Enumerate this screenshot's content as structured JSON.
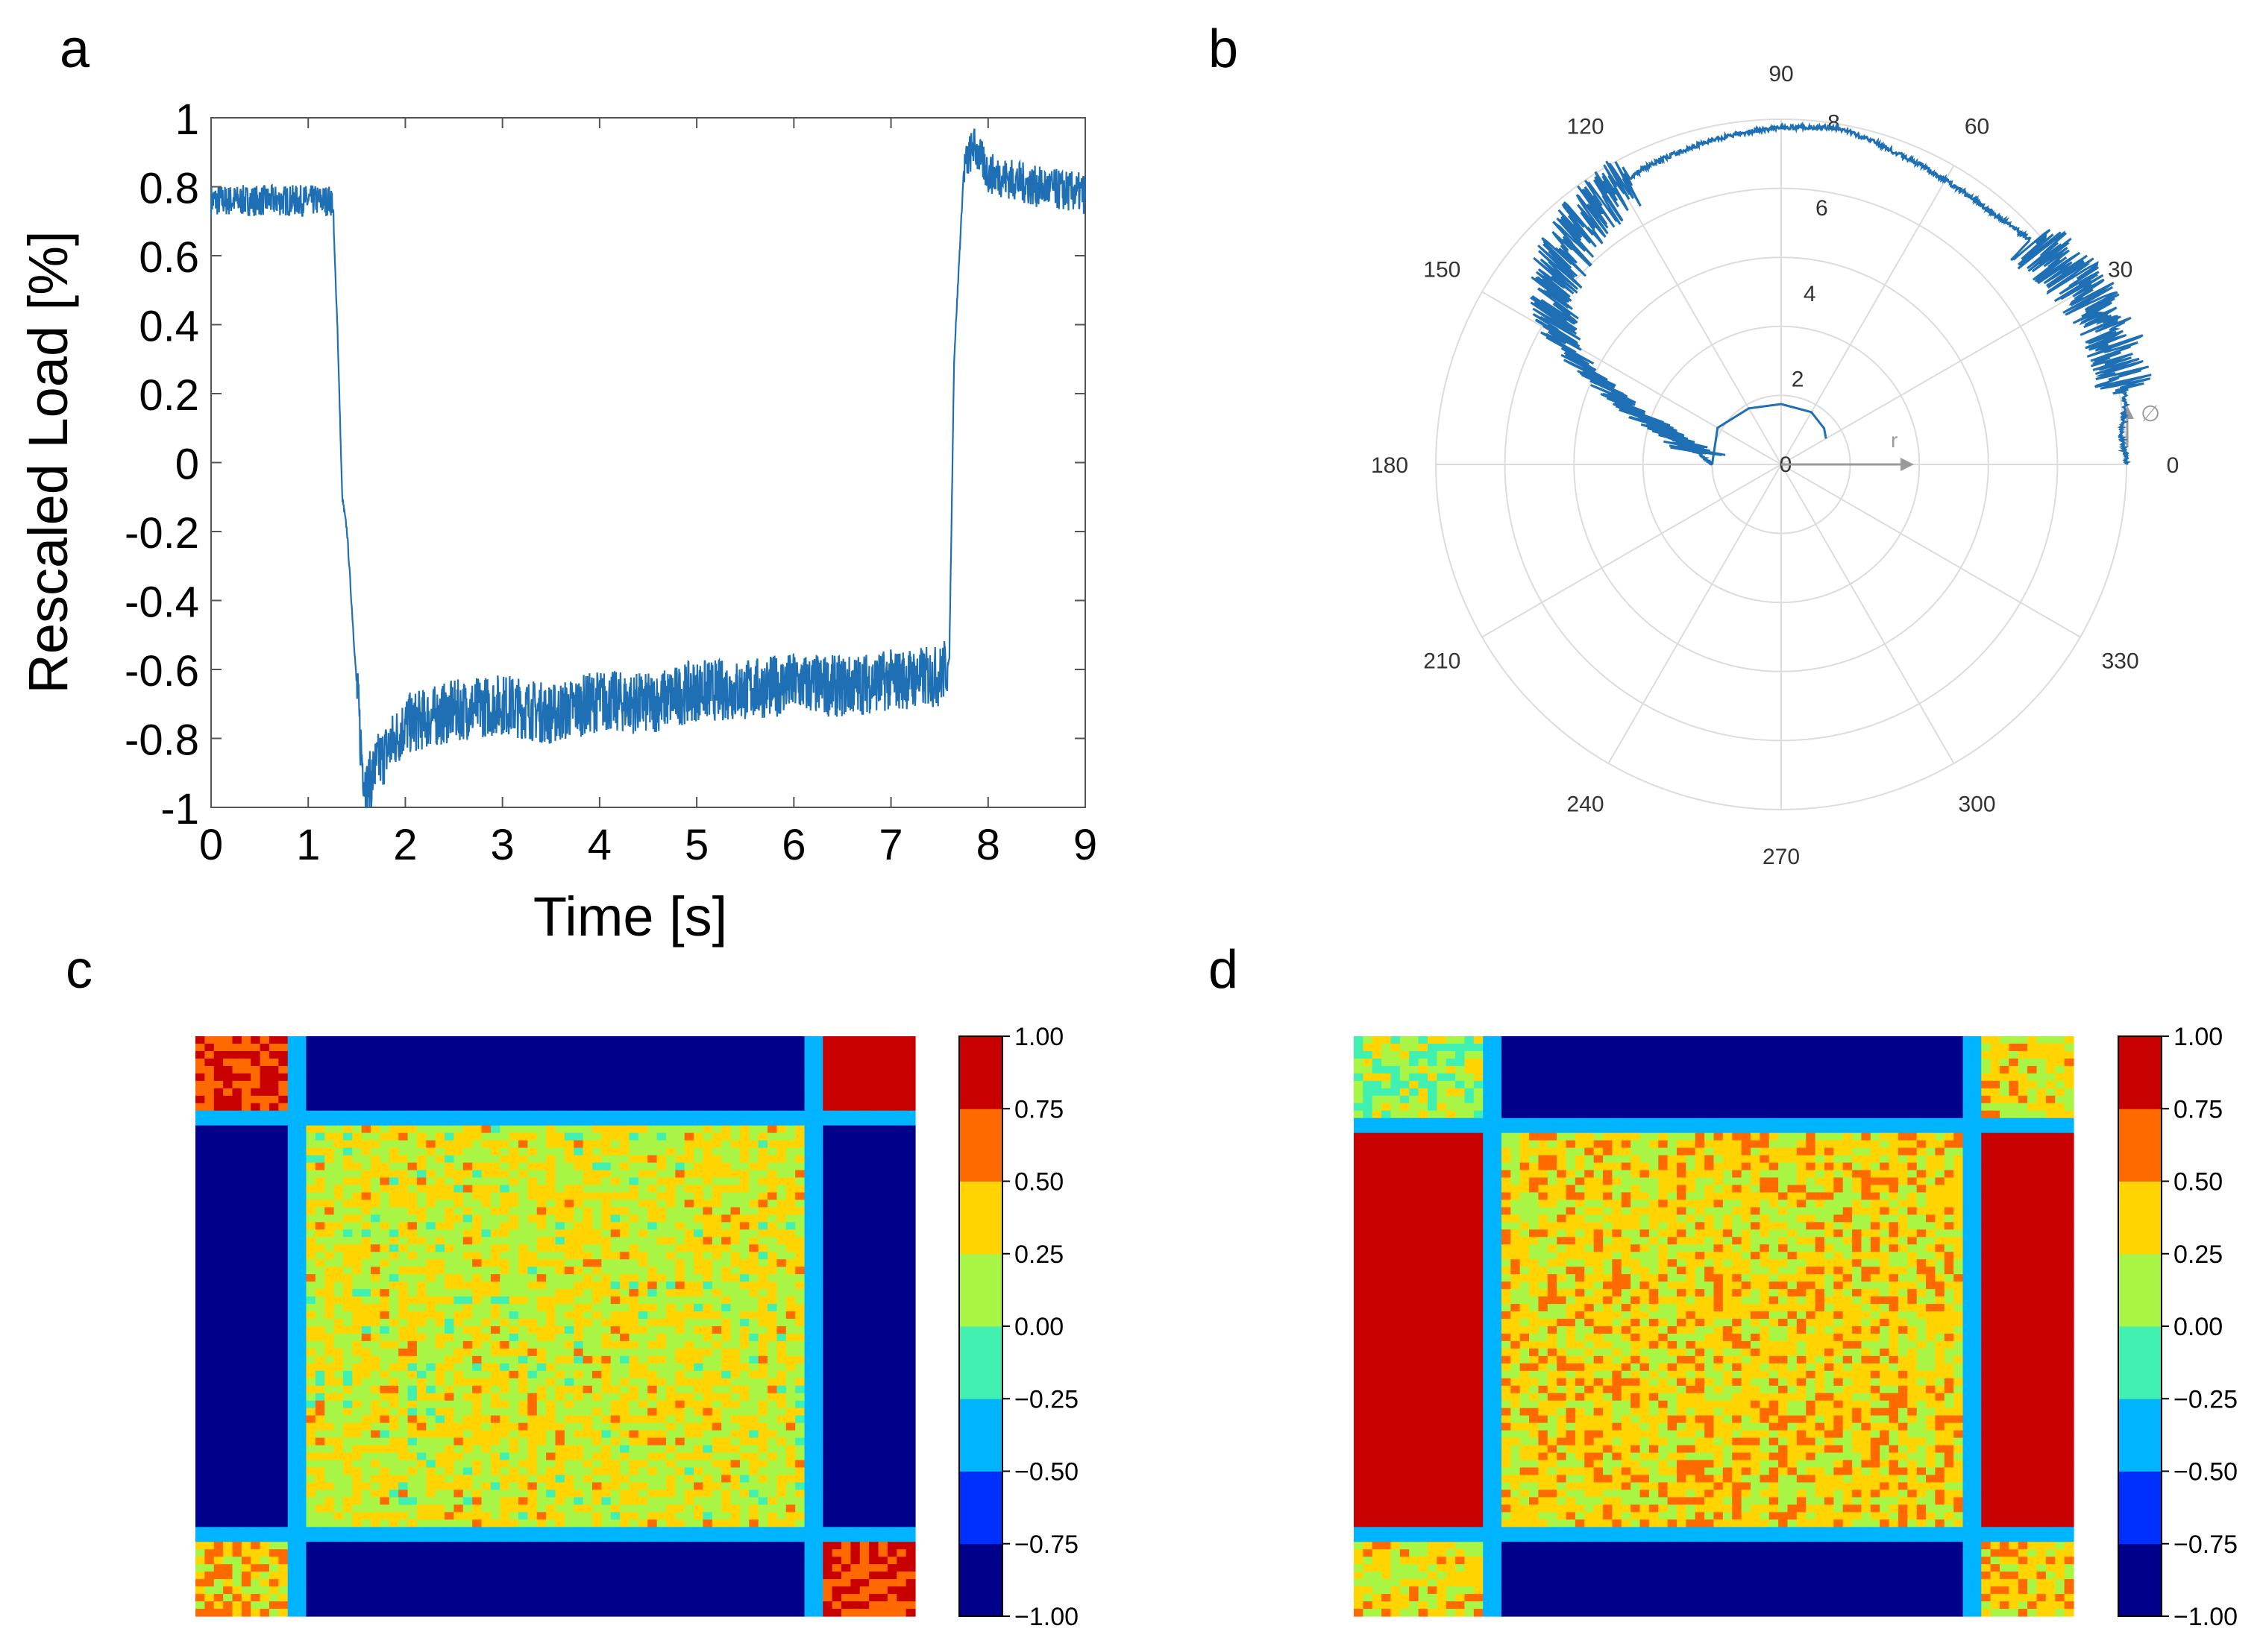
{
  "panel_labels": {
    "a": "a",
    "b": "b",
    "c": "c",
    "d": "d"
  },
  "chart_data": [
    {
      "panel": "a",
      "type": "line",
      "xlabel": "Time [s]",
      "ylabel": "Rescaled Load [%]",
      "xlim": [
        0,
        9
      ],
      "ylim": [
        -1,
        1
      ],
      "xticks": [
        "0",
        "1",
        "2",
        "3",
        "4",
        "5",
        "6",
        "7",
        "8",
        "9"
      ],
      "yticks": [
        "1",
        "0.8",
        "0.6",
        "0.4",
        "0.2",
        "0",
        "-0.2",
        "-0.4",
        "-0.6",
        "-0.8",
        "-1"
      ],
      "grid": false,
      "color": "#1f6fb5",
      "series": [
        {
          "x": [
            0,
            0.5,
            1.0,
            1.25,
            1.3,
            1.35,
            1.4,
            1.5,
            1.55,
            1.6,
            1.7,
            2.0,
            2.5,
            3.0,
            3.5,
            4.0,
            4.5,
            5.0,
            5.5,
            6.0,
            6.5,
            7.0,
            7.5,
            7.6,
            7.65,
            7.75,
            7.85,
            8.0,
            8.5,
            9.0
          ],
          "y": [
            0.76,
            0.76,
            0.76,
            0.76,
            0.4,
            -0.1,
            -0.2,
            -0.65,
            -0.85,
            -0.95,
            -0.88,
            -0.76,
            -0.72,
            -0.7,
            -0.73,
            -0.69,
            -0.7,
            -0.66,
            -0.66,
            -0.64,
            -0.65,
            -0.63,
            -0.62,
            -0.58,
            0.3,
            0.85,
            0.92,
            0.84,
            0.8,
            0.78
          ]
        }
      ]
    },
    {
      "panel": "b",
      "type": "scatter",
      "subtype": "polar",
      "angle_ticks": [
        "0",
        "30",
        "60",
        "90",
        "120",
        "150",
        "180",
        "210",
        "240",
        "270",
        "300",
        "330"
      ],
      "radial_ticks": [
        "0",
        "2",
        "4",
        "6",
        "8"
      ],
      "radial_max": 8,
      "axis_labels": {
        "r": "r",
        "phi": "∅"
      },
      "color": "#1f6fb5",
      "series": [
        {
          "theta": [
            0,
            5,
            10,
            20,
            30,
            40,
            50,
            60,
            70,
            80,
            90,
            100,
            110,
            120,
            130,
            140,
            150,
            160,
            170,
            180
          ],
          "r": [
            8.0,
            7.9,
            8.1,
            8.2,
            8.1,
            7.8,
            7.6,
            7.6,
            7.7,
            7.9,
            7.8,
            7.7,
            7.6,
            7.5,
            7.2,
            6.8,
            6.0,
            3.5,
            2.0,
            1.6
          ]
        },
        {
          "theta": [
            180,
            150,
            120,
            90,
            60,
            40,
            30
          ],
          "r": [
            1.6,
            1.7,
            1.5,
            1.4,
            1.4,
            1.3,
            1.2
          ]
        }
      ]
    },
    {
      "panel": "c",
      "type": "heatmap",
      "colorbar_ticks": [
        "1.00",
        "0.75",
        "0.50",
        "0.25",
        "0.00",
        "−0.25",
        "−0.50",
        "−0.75",
        "−1.00"
      ],
      "colorbar_range": [
        -1,
        1
      ],
      "colorbar_levels": [
        "#00008b",
        "#0030ff",
        "#00b4ff",
        "#40f0b0",
        "#a8f545",
        "#ffd400",
        "#ff6a00",
        "#c80000"
      ],
      "block_fractions": [
        0.145,
        0.855,
        0.86
      ],
      "block_values": [
        [
          0.75,
          -0.9,
          0.8
        ],
        [
          -0.9,
          0.25,
          -0.9
        ],
        [
          0.4,
          -0.9,
          0.75
        ]
      ]
    },
    {
      "panel": "d",
      "type": "heatmap",
      "colorbar_ticks": [
        "1.00",
        "0.75",
        "0.50",
        "0.25",
        "0.00",
        "−0.25",
        "−0.50",
        "−0.75",
        "−1.00"
      ],
      "colorbar_range": [
        -1,
        1
      ],
      "colorbar_levels": [
        "#00008b",
        "#0030ff",
        "#00b4ff",
        "#40f0b0",
        "#a8f545",
        "#ffd400",
        "#ff6a00",
        "#c80000"
      ],
      "block_fractions": [
        0.195,
        0.855,
        0.15
      ],
      "block_values": [
        [
          0.1,
          -0.9,
          0.3
        ],
        [
          0.95,
          0.35,
          0.95
        ],
        [
          0.3,
          -0.9,
          0.4
        ]
      ]
    }
  ]
}
